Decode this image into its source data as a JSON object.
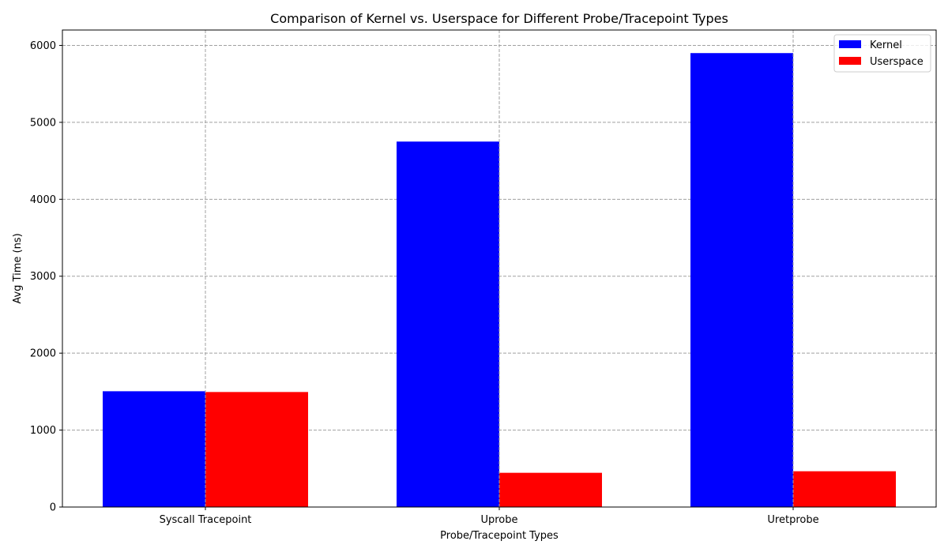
{
  "chart_data": {
    "type": "bar",
    "title": "Comparison of Kernel vs. Userspace for Different Probe/Tracepoint Types",
    "xlabel": "Probe/Tracepoint Types",
    "ylabel": "Avg Time (ns)",
    "categories": [
      "Syscall Tracepoint",
      "Uprobe",
      "Uretprobe"
    ],
    "series": [
      {
        "name": "Kernel",
        "color": "#0000ff",
        "values": [
          1505,
          4750,
          5900
        ]
      },
      {
        "name": "Userspace",
        "color": "#ff0000",
        "values": [
          1495,
          445,
          465
        ]
      }
    ],
    "ylim": [
      0,
      6200
    ],
    "yticks": [
      0,
      1000,
      2000,
      3000,
      4000,
      5000,
      6000
    ],
    "grid": true,
    "legend_position": "top-right"
  }
}
